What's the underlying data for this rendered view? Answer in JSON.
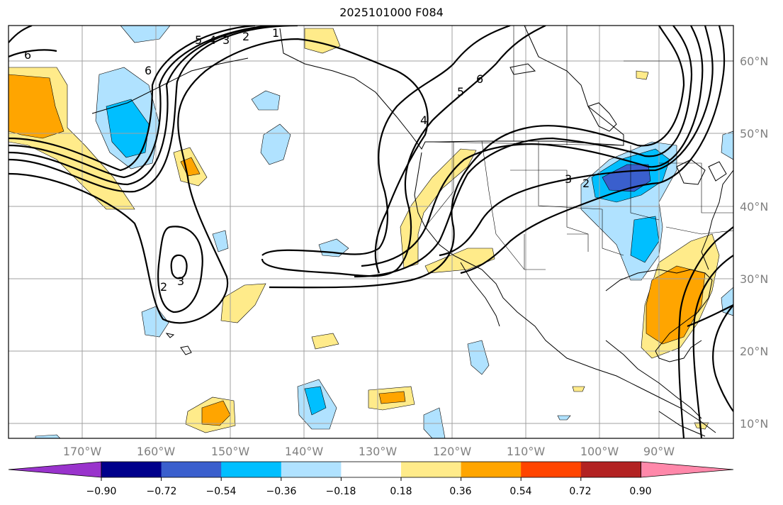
{
  "title": "2025101000 F084",
  "lat_labels": [
    "60°N",
    "50°N",
    "40°N",
    "30°N",
    "20°N",
    "10°N"
  ],
  "lon_labels": [
    "170°W",
    "160°W",
    "150°W",
    "140°W",
    "130°W",
    "120°W",
    "110°W",
    "100°W",
    "90°W"
  ],
  "colorbar": {
    "colors": [
      "#9933cc",
      "#00008b",
      "#3a5fcd",
      "#00bfff",
      "#b0e2ff",
      "#ffffff",
      "#ffeb8a",
      "#ffa500",
      "#ff4500",
      "#b22222",
      "#ff88aa"
    ],
    "ticks": [
      "−0.90",
      "−0.72",
      "−0.54",
      "−0.36",
      "−0.18",
      "0.18",
      "0.36",
      "0.54",
      "0.72",
      "0.90"
    ]
  },
  "contour_labels": [
    "6",
    "5",
    "4",
    "3",
    "2",
    "1",
    "4",
    "5",
    "6",
    "3",
    "2",
    "2",
    "3",
    "6"
  ]
}
